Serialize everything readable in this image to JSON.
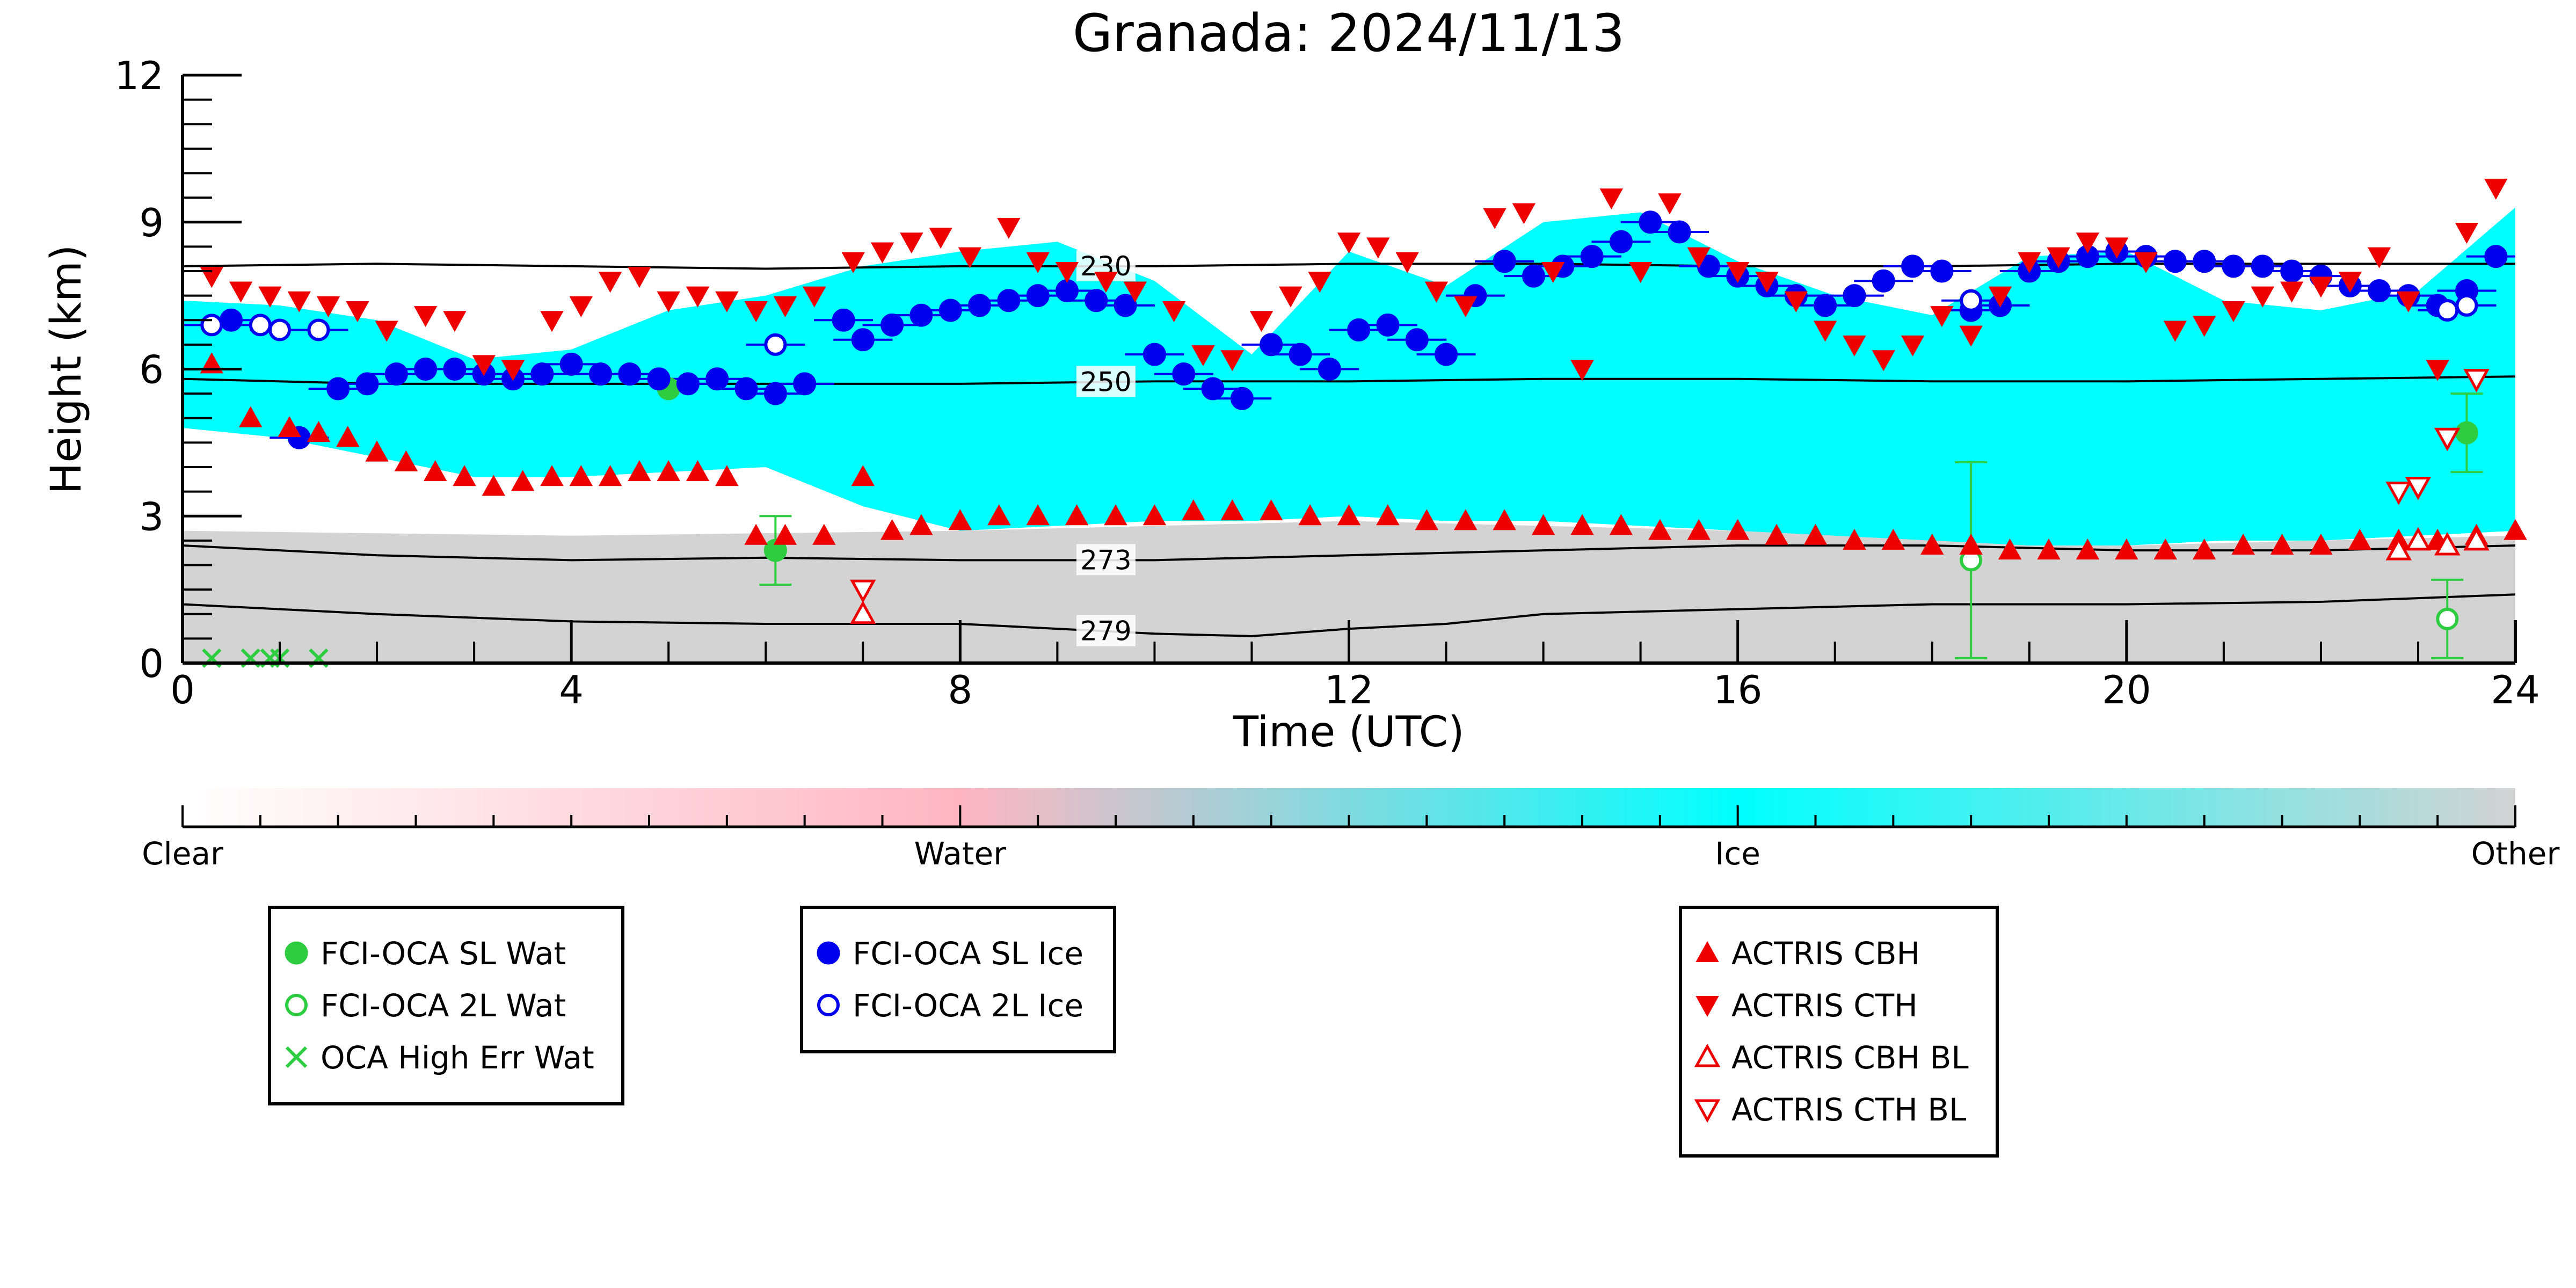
{
  "chart_data": {
    "type": "scatter",
    "title": "Granada: 2024/11/13",
    "xlabel": "Time (UTC)",
    "ylabel": "Height (km)",
    "xlim": [
      0,
      24
    ],
    "ylim": [
      0,
      12
    ],
    "xticks": [
      0,
      4,
      8,
      12,
      16,
      20,
      24
    ],
    "yticks": [
      0,
      3,
      6,
      9,
      12
    ],
    "grid": false,
    "background_layers": [
      {
        "class": "Ice",
        "color": "#00ffff",
        "x": [
          0,
          1,
          2,
          3,
          4,
          5,
          6,
          7,
          8,
          9,
          10,
          11,
          12,
          13,
          14,
          15,
          16,
          17,
          18,
          19,
          20,
          21,
          22,
          23,
          24
        ],
        "bottom": [
          4.8,
          4.6,
          4.2,
          3.8,
          3.8,
          3.9,
          4.0,
          3.2,
          2.7,
          2.8,
          2.9,
          2.9,
          3.0,
          2.9,
          2.9,
          2.8,
          2.7,
          2.6,
          2.5,
          2.4,
          2.4,
          2.5,
          2.5,
          2.6,
          2.7
        ],
        "top": [
          7.4,
          7.3,
          7.0,
          6.2,
          6.4,
          7.2,
          7.5,
          8.1,
          8.4,
          8.6,
          7.8,
          6.3,
          8.4,
          7.7,
          9.0,
          9.2,
          8.2,
          7.5,
          7.1,
          8.3,
          8.4,
          7.4,
          7.2,
          7.6,
          9.3
        ]
      },
      {
        "class": "Other",
        "color": "#d3d3d3",
        "x": [
          0,
          4,
          8,
          12,
          16,
          20,
          24
        ],
        "bottom": [
          0,
          0,
          0,
          0,
          0,
          0,
          0
        ],
        "top": [
          2.7,
          2.6,
          2.7,
          2.9,
          2.7,
          2.4,
          2.6
        ]
      }
    ],
    "contours": [
      {
        "label": "230",
        "x": [
          0,
          2,
          4,
          6,
          8,
          10,
          12,
          14,
          16,
          18,
          20,
          22,
          24
        ],
        "y": [
          8.1,
          8.15,
          8.1,
          8.05,
          8.1,
          8.1,
          8.15,
          8.15,
          8.1,
          8.1,
          8.15,
          8.15,
          8.15
        ]
      },
      {
        "label": "250",
        "x": [
          0,
          2,
          4,
          6,
          8,
          10,
          12,
          14,
          16,
          18,
          20,
          22,
          24
        ],
        "y": [
          5.8,
          5.7,
          5.7,
          5.7,
          5.7,
          5.75,
          5.75,
          5.8,
          5.8,
          5.75,
          5.75,
          5.8,
          5.85
        ]
      },
      {
        "label": "273",
        "x": [
          0,
          2,
          4,
          6,
          8,
          10,
          12,
          14,
          16,
          18,
          20,
          22,
          24
        ],
        "y": [
          2.4,
          2.2,
          2.1,
          2.15,
          2.1,
          2.1,
          2.2,
          2.3,
          2.4,
          2.4,
          2.3,
          2.3,
          2.4
        ]
      },
      {
        "label": "279",
        "x": [
          0,
          2,
          4,
          6,
          8,
          10,
          11,
          12,
          13,
          14,
          16,
          18,
          20,
          22,
          24
        ],
        "y": [
          1.2,
          1.0,
          0.85,
          0.8,
          0.8,
          0.6,
          0.55,
          0.7,
          0.8,
          1.0,
          1.1,
          1.2,
          1.2,
          1.25,
          1.4
        ]
      }
    ],
    "series": [
      {
        "name": "FCI-OCA SL Wat",
        "marker": "filled-circle",
        "color": "#2ecc40",
        "x": [
          5.0,
          6.1,
          23.5
        ],
        "y": [
          5.6,
          2.3,
          4.7
        ],
        "yerr": [
          0,
          0.7,
          0.8
        ]
      },
      {
        "name": "FCI-OCA 2L Wat",
        "marker": "open-circle",
        "color": "#2ecc40",
        "x": [
          18.4,
          23.3
        ],
        "y": [
          2.1,
          0.9
        ],
        "yerr": [
          2.0,
          0.8
        ]
      },
      {
        "name": "OCA High Err Wat",
        "marker": "x",
        "color": "#2ecc40",
        "x": [
          0.3,
          0.7,
          0.9,
          1.0,
          1.4
        ],
        "y": [
          0.1,
          0.1,
          0.1,
          0.1,
          0.1
        ]
      },
      {
        "name": "FCI-OCA SL Ice",
        "marker": "filled-circle",
        "color": "#0000ee",
        "x": [
          0.5,
          1.2,
          1.6,
          1.9,
          2.2,
          2.5,
          2.8,
          3.1,
          3.4,
          3.7,
          4.0,
          4.3,
          4.6,
          4.9,
          5.2,
          5.5,
          5.8,
          6.1,
          6.4,
          6.8,
          7.0,
          7.3,
          7.6,
          7.9,
          8.2,
          8.5,
          8.8,
          9.1,
          9.4,
          9.7,
          10.0,
          10.3,
          10.6,
          10.9,
          11.2,
          11.5,
          11.8,
          12.1,
          12.4,
          12.7,
          13.0,
          13.3,
          13.6,
          13.9,
          14.2,
          14.5,
          14.8,
          15.1,
          15.4,
          15.7,
          16.0,
          16.3,
          16.6,
          16.9,
          17.2,
          17.5,
          17.8,
          18.1,
          18.4,
          18.7,
          19.0,
          19.3,
          19.6,
          19.9,
          20.2,
          20.5,
          20.8,
          21.1,
          21.4,
          21.7,
          22.0,
          22.3,
          22.6,
          22.9,
          23.2,
          23.5,
          23.8
        ],
        "y": [
          7.0,
          4.6,
          5.6,
          5.7,
          5.9,
          6.0,
          6.0,
          5.9,
          5.8,
          5.9,
          6.1,
          5.9,
          5.9,
          5.8,
          5.7,
          5.8,
          5.6,
          5.5,
          5.7,
          7.0,
          6.6,
          6.9,
          7.1,
          7.2,
          7.3,
          7.4,
          7.5,
          7.6,
          7.4,
          7.3,
          6.3,
          5.9,
          5.6,
          5.4,
          6.5,
          6.3,
          6.0,
          6.8,
          6.9,
          6.6,
          6.3,
          7.5,
          8.2,
          7.9,
          8.1,
          8.3,
          8.6,
          9.0,
          8.8,
          8.1,
          7.9,
          7.7,
          7.5,
          7.3,
          7.5,
          7.8,
          8.1,
          8.0,
          7.2,
          7.3,
          8.0,
          8.2,
          8.3,
          8.4,
          8.3,
          8.2,
          8.2,
          8.1,
          8.1,
          8.0,
          7.9,
          7.7,
          7.6,
          7.5,
          7.3,
          7.6,
          8.3
        ]
      },
      {
        "name": "FCI-OCA 2L Ice",
        "marker": "open-circle",
        "color": "#0000ee",
        "x": [
          0.3,
          0.8,
          1.0,
          1.4,
          6.1,
          18.4,
          23.3,
          23.5
        ],
        "y": [
          6.9,
          6.9,
          6.8,
          6.8,
          6.5,
          7.4,
          7.2,
          7.3
        ]
      },
      {
        "name": "ACTRIS CBH",
        "marker": "filled-triangle-up",
        "color": "#ee0000",
        "x": [
          0.3,
          0.7,
          1.1,
          1.4,
          1.7,
          2.0,
          2.3,
          2.6,
          2.9,
          3.2,
          3.5,
          3.8,
          4.1,
          4.4,
          4.7,
          5.0,
          5.3,
          5.6,
          5.9,
          6.2,
          6.6,
          7.0,
          7.3,
          7.6,
          8.0,
          8.4,
          8.8,
          9.2,
          9.6,
          10.0,
          10.4,
          10.8,
          11.2,
          11.6,
          12.0,
          12.4,
          12.8,
          13.2,
          13.6,
          14.0,
          14.4,
          14.8,
          15.2,
          15.6,
          16.0,
          16.4,
          16.8,
          17.2,
          17.6,
          18.0,
          18.4,
          18.8,
          19.2,
          19.6,
          20.0,
          20.4,
          20.8,
          21.2,
          21.6,
          22.0,
          22.4,
          22.8,
          23.2,
          23.6,
          24.0
        ],
        "y": [
          6.1,
          5.0,
          4.8,
          4.7,
          4.6,
          4.3,
          4.1,
          3.9,
          3.8,
          3.6,
          3.7,
          3.8,
          3.8,
          3.8,
          3.9,
          3.9,
          3.9,
          3.8,
          2.6,
          2.6,
          2.6,
          3.8,
          2.7,
          2.8,
          2.9,
          3.0,
          3.0,
          3.0,
          3.0,
          3.0,
          3.1,
          3.1,
          3.1,
          3.0,
          3.0,
          3.0,
          2.9,
          2.9,
          2.9,
          2.8,
          2.8,
          2.8,
          2.7,
          2.7,
          2.7,
          2.6,
          2.6,
          2.5,
          2.5,
          2.4,
          2.4,
          2.3,
          2.3,
          2.3,
          2.3,
          2.3,
          2.3,
          2.4,
          2.4,
          2.4,
          2.5,
          2.5,
          2.5,
          2.6,
          2.7
        ]
      },
      {
        "name": "ACTRIS CTH",
        "marker": "filled-triangle-down",
        "color": "#ee0000",
        "x": [
          0.3,
          0.6,
          0.9,
          1.2,
          1.5,
          1.8,
          2.1,
          2.5,
          2.8,
          3.1,
          3.4,
          3.8,
          4.1,
          4.4,
          4.7,
          5.0,
          5.3,
          5.6,
          5.9,
          6.2,
          6.5,
          6.9,
          7.2,
          7.5,
          7.8,
          8.1,
          8.5,
          8.8,
          9.1,
          9.5,
          9.8,
          10.2,
          10.5,
          10.8,
          11.1,
          11.4,
          11.7,
          12.0,
          12.3,
          12.6,
          12.9,
          13.2,
          13.5,
          13.8,
          14.1,
          14.4,
          14.7,
          15.0,
          15.3,
          15.6,
          16.0,
          16.3,
          16.6,
          16.9,
          17.2,
          17.5,
          17.8,
          18.1,
          18.4,
          18.7,
          19.0,
          19.3,
          19.6,
          19.9,
          20.2,
          20.5,
          20.8,
          21.1,
          21.4,
          21.7,
          22.0,
          22.3,
          22.6,
          22.9,
          23.2,
          23.5,
          23.8
        ],
        "y": [
          7.9,
          7.6,
          7.5,
          7.4,
          7.3,
          7.2,
          6.8,
          7.1,
          7.0,
          6.1,
          6.0,
          7.0,
          7.3,
          7.8,
          7.9,
          7.4,
          7.5,
          7.4,
          7.2,
          7.3,
          7.5,
          8.2,
          8.4,
          8.6,
          8.7,
          8.3,
          8.9,
          8.2,
          8.0,
          7.8,
          7.6,
          7.2,
          6.3,
          6.2,
          7.0,
          7.5,
          7.8,
          8.6,
          8.5,
          8.2,
          7.6,
          7.3,
          9.1,
          9.2,
          8.0,
          6.0,
          9.5,
          8.0,
          9.4,
          8.3,
          8.0,
          7.8,
          7.4,
          6.8,
          6.5,
          6.2,
          6.5,
          7.1,
          6.7,
          7.5,
          8.2,
          8.3,
          8.6,
          8.5,
          8.2,
          6.8,
          6.9,
          7.2,
          7.5,
          7.6,
          7.7,
          7.8,
          8.3,
          7.4,
          6.0,
          8.8,
          9.7
        ]
      },
      {
        "name": "ACTRIS CBH BL",
        "marker": "open-triangle-up",
        "color": "#ee0000",
        "x": [
          7.0,
          22.8,
          23.0,
          23.3,
          23.6
        ],
        "y": [
          1.0,
          2.3,
          2.5,
          2.4,
          2.5
        ]
      },
      {
        "name": "ACTRIS CTH BL",
        "marker": "open-triangle-down",
        "color": "#ee0000",
        "x": [
          7.0,
          22.8,
          23.0,
          23.3,
          23.6
        ],
        "y": [
          1.5,
          3.5,
          3.6,
          4.6,
          5.8
        ]
      }
    ],
    "colorbar": {
      "labels": [
        "Clear",
        "Water",
        "Ice",
        "Other"
      ],
      "colors": [
        "#ffffff",
        "#ffb6c1",
        "#00ffff",
        "#d3d3d3"
      ]
    },
    "legends": [
      {
        "entries": [
          "FCI-OCA SL Wat",
          "FCI-OCA 2L Wat",
          "OCA High Err Wat"
        ]
      },
      {
        "entries": [
          "FCI-OCA SL Ice",
          "FCI-OCA 2L Ice"
        ]
      },
      {
        "entries": [
          "ACTRIS CBH",
          "ACTRIS CTH",
          "ACTRIS CBH BL",
          "ACTRIS CTH BL"
        ]
      }
    ]
  }
}
